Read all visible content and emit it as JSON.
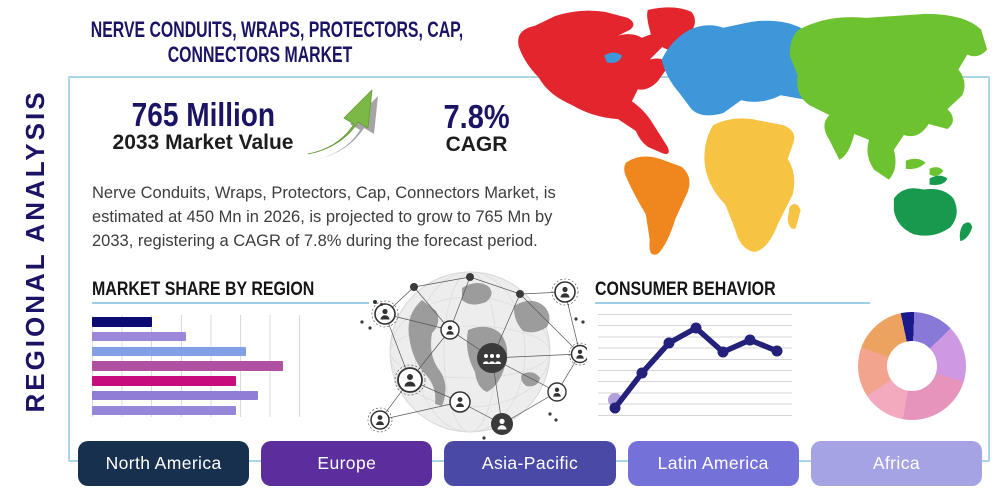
{
  "title": {
    "line1": "NERVE CONDUITS, WRAPS, PROTECTORS, CAP,",
    "line2": "CONNECTORS MARKET"
  },
  "side_label": "REGIONAL ANALYSIS",
  "stats": {
    "value": "765 Million",
    "value_caption": "2033 Market Value",
    "cagr": "7.8%",
    "cagr_caption": "CAGR"
  },
  "description": "Nerve Conduits, Wraps, Protectors, Cap, Connectors Market, is estimated at 450 Mn in 2026, is projected to grow to 765 Mn by 2033, registering a CAGR of 7.8% during the forecast period.",
  "sections": {
    "market_share_heading": "MARKET SHARE BY REGION",
    "consumer_behavior_heading": "CONSUMER BEHAVIOR"
  },
  "region_buttons": [
    {
      "label": "North America",
      "color": "#16304e"
    },
    {
      "label": "Europe",
      "color": "#5c2d9c"
    },
    {
      "label": "Asia-Pacific",
      "color": "#4a49a6"
    },
    {
      "label": "Latin America",
      "color": "#7472d8"
    },
    {
      "label": "Africa",
      "color": "#a6a3e4"
    }
  ],
  "map_regions": [
    {
      "name": "North America",
      "color": "#e3262e"
    },
    {
      "name": "South America",
      "color": "#f0871e"
    },
    {
      "name": "Europe",
      "color": "#3e97d9"
    },
    {
      "name": "Africa",
      "color": "#f6c343"
    },
    {
      "name": "Asia",
      "color": "#6dc22f"
    },
    {
      "name": "Australia",
      "color": "#179a4e"
    }
  ],
  "chart_data": [
    {
      "type": "bar",
      "title": "MARKET SHARE BY REGION",
      "orientation": "horizontal",
      "values": [
        29,
        45,
        74,
        92,
        69,
        80,
        69
      ],
      "colors": [
        "#0a0a70",
        "#9c87d8",
        "#82a0e4",
        "#b050a2",
        "#c70c7d",
        "#8f7ed4",
        "#9687d8"
      ],
      "xlim": [
        0,
        100
      ],
      "grid": true
    },
    {
      "type": "line",
      "title": "CONSUMER BEHAVIOR",
      "values": [
        6,
        41,
        71,
        86,
        62,
        74,
        63
      ],
      "ylim": [
        0,
        100
      ],
      "grid": true,
      "line_color": "#23217a",
      "start_marker_color": "#b2a0dd"
    },
    {
      "type": "pie",
      "donut": true,
      "start_angle_deg": -12,
      "slices": [
        {
          "color": "#1a1a8c",
          "value": 4
        },
        {
          "color": "#8878d8",
          "value": 12
        },
        {
          "color": "#ce99e2",
          "value": 17
        },
        {
          "color": "#e794bd",
          "value": 23
        },
        {
          "color": "#f4aabe",
          "value": 13
        },
        {
          "color": "#f3a48e",
          "value": 15
        },
        {
          "color": "#eca35f",
          "value": 16
        }
      ]
    }
  ]
}
